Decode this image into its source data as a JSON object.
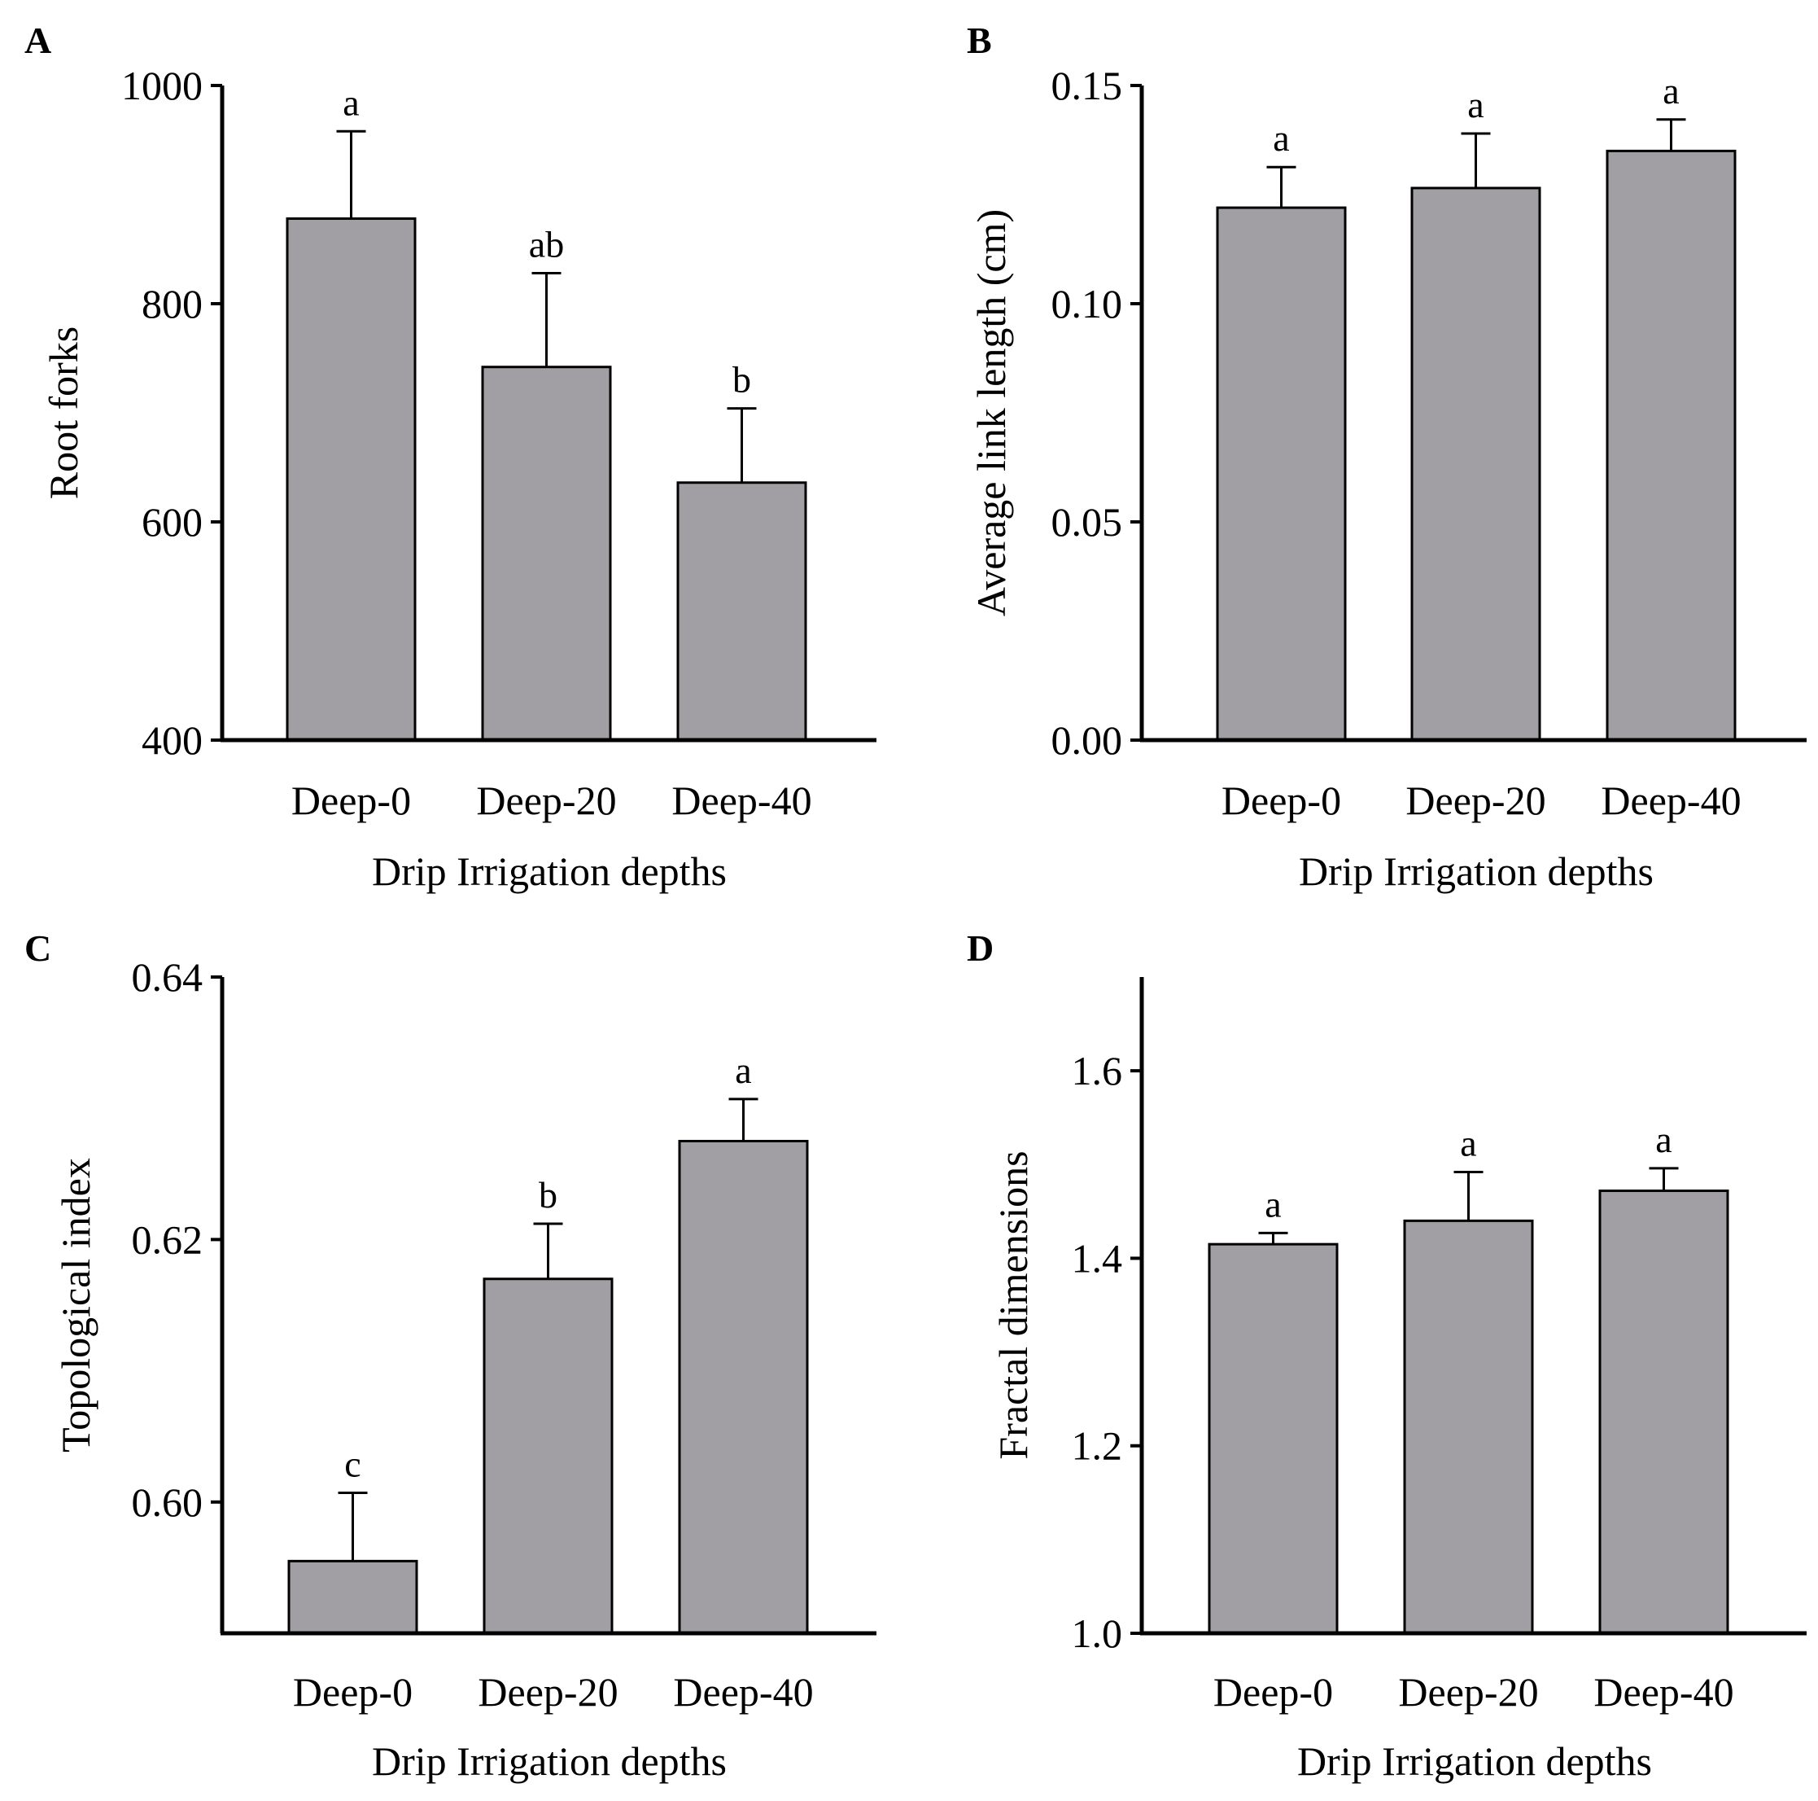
{
  "colors": {
    "bar_fill": "#a19fa4",
    "stroke": "#000000",
    "background": "#ffffff"
  },
  "chart_data": [
    {
      "panel": "A",
      "type": "bar",
      "categories": [
        "Deep-0",
        "Deep-20",
        "Deep-40"
      ],
      "values": [
        878,
        742,
        636
      ],
      "errors": [
        80,
        86,
        68
      ],
      "significance": [
        "a",
        "ab",
        "b"
      ],
      "xlabel": "Drip Irrigation depths",
      "ylabel": "Root forks",
      "ylim": [
        400,
        1000
      ],
      "yticks": [
        400,
        600,
        800,
        1000
      ],
      "ytick_labels": [
        "400",
        "600",
        "800",
        "1000"
      ]
    },
    {
      "panel": "B",
      "type": "bar",
      "categories": [
        "Deep-0",
        "Deep-20",
        "Deep-40"
      ],
      "values": [
        0.122,
        0.1265,
        0.135
      ],
      "errors": [
        0.0093,
        0.0125,
        0.0072
      ],
      "significance": [
        "a",
        "a",
        "a"
      ],
      "xlabel": "Drip Irrigation depths",
      "ylabel": "Average link length (cm)",
      "ylim": [
        0,
        0.15
      ],
      "yticks": [
        0,
        0.05,
        0.1,
        0.15
      ],
      "ytick_labels": [
        "0.00",
        "0.05",
        "0.10",
        "0.15"
      ]
    },
    {
      "panel": "C",
      "type": "bar",
      "categories": [
        "Deep-0",
        "Deep-20",
        "Deep-40"
      ],
      "values": [
        0.5955,
        0.617,
        0.6275
      ],
      "errors": [
        0.0052,
        0.0042,
        0.0032
      ],
      "significance": [
        "c",
        "b",
        "a"
      ],
      "xlabel": "Drip Irrigation depths",
      "ylabel": "Topological index",
      "ylim": [
        0.59,
        0.64
      ],
      "yticks": [
        0.6,
        0.62,
        0.64
      ],
      "ytick_labels": [
        "0.60",
        "0.62",
        "0.64"
      ]
    },
    {
      "panel": "D",
      "type": "bar",
      "categories": [
        "Deep-0",
        "Deep-20",
        "Deep-40"
      ],
      "values": [
        1.415,
        1.44,
        1.472
      ],
      "errors": [
        0.012,
        0.052,
        0.024
      ],
      "significance": [
        "a",
        "a",
        "a"
      ],
      "xlabel": "Drip Irrigation depths",
      "ylabel": "Fractal dimensions",
      "ylim": [
        1.0,
        1.7
      ],
      "yticks": [
        1.0,
        1.2,
        1.4,
        1.6
      ],
      "ytick_labels": [
        "1.0",
        "1.2",
        "1.4",
        "1.6"
      ]
    }
  ]
}
